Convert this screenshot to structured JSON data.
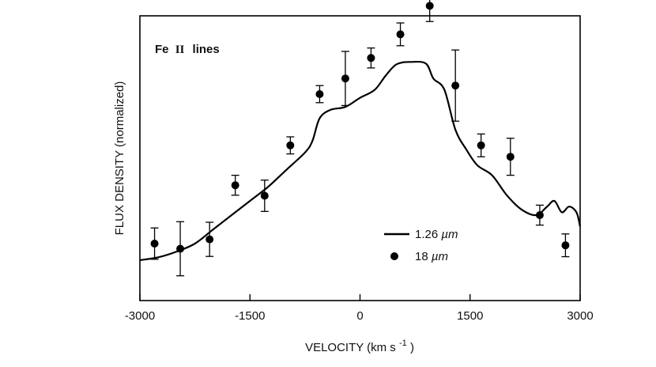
{
  "chart_data": {
    "type": "line",
    "title": "",
    "annotation": {
      "element": "Fe",
      "ion": "II",
      "suffix": "lines"
    },
    "xlabel": {
      "main": "VELOCITY (km s",
      "sup": "-1",
      "close": ")"
    },
    "ylabel": "FLUX DENSITY (normalized)",
    "xlim": [
      -3000,
      3000
    ],
    "ylim": [
      0.0,
      1.0
    ],
    "xticks": [
      -3000,
      -1500,
      0,
      1500,
      3000
    ],
    "xtick_labels": [
      "-3000",
      "-1500",
      "0",
      "1500",
      "3000"
    ],
    "grid": false,
    "legend_position": "lower-right",
    "series": [
      {
        "name": "1.26 µm",
        "label_value": "1.26 ",
        "label_unit": "µm",
        "kind": "line",
        "x": [
          -3000,
          -2750,
          -2500,
          -2250,
          -2000,
          -1750,
          -1500,
          -1250,
          -1000,
          -750,
          -650,
          -550,
          -400,
          -200,
          0,
          200,
          350,
          500,
          700,
          900,
          1000,
          1150,
          1300,
          1450,
          1600,
          1800,
          2000,
          2200,
          2400,
          2550,
          2650,
          2750,
          2850,
          2950,
          3000
        ],
        "y": [
          0.142,
          0.152,
          0.172,
          0.2,
          0.25,
          0.3,
          0.35,
          0.4,
          0.46,
          0.52,
          0.56,
          0.64,
          0.67,
          0.68,
          0.712,
          0.74,
          0.79,
          0.83,
          0.838,
          0.832,
          0.78,
          0.74,
          0.6,
          0.53,
          0.475,
          0.44,
          0.37,
          0.32,
          0.3,
          0.33,
          0.35,
          0.31,
          0.33,
          0.31,
          0.26
        ]
      },
      {
        "name": "18 µm",
        "label_value": "18 ",
        "label_unit": "µm",
        "kind": "points",
        "x": [
          -2800,
          -2450,
          -2050,
          -1700,
          -1300,
          -950,
          -550,
          -200,
          150,
          550,
          950,
          1300,
          1650,
          2050,
          2450,
          2800
        ],
        "y": [
          0.2,
          0.182,
          0.215,
          0.405,
          0.368,
          0.545,
          0.725,
          0.78,
          0.852,
          0.935,
          1.035,
          0.755,
          0.545,
          0.505,
          0.3,
          0.194
        ],
        "yerr": [
          0.055,
          0.095,
          0.06,
          0.035,
          0.055,
          0.03,
          0.03,
          0.095,
          0.035,
          0.04,
          0.055,
          0.125,
          0.04,
          0.065,
          0.035,
          0.04
        ]
      }
    ]
  }
}
